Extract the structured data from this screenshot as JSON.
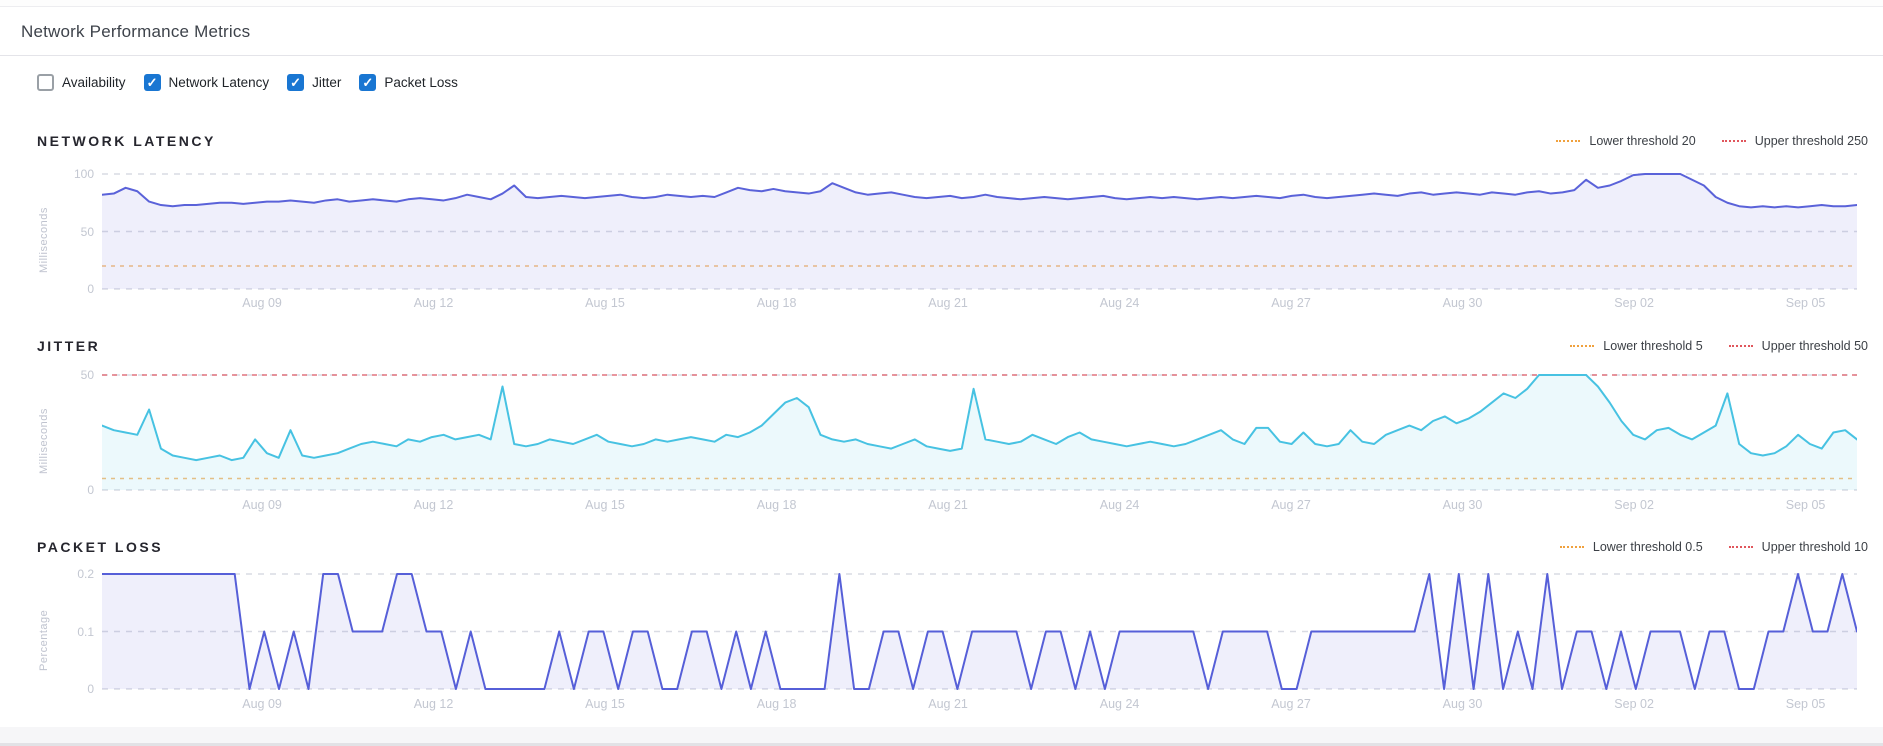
{
  "page": {
    "title": "Network Performance Metrics"
  },
  "filters": [
    {
      "label": "Availability",
      "checked": false
    },
    {
      "label": "Network Latency",
      "checked": true
    },
    {
      "label": "Jitter",
      "checked": true
    },
    {
      "label": "Packet Loss",
      "checked": true
    }
  ],
  "colors": {
    "checkbox_checked": "#1976d2",
    "lower_threshold": "#f0a13e",
    "upper_threshold": "#e0565c",
    "grid": "#d9dbe3",
    "tick_text": "#c3c7d1"
  },
  "x_axis": {
    "labels": [
      "Aug 09",
      "Aug 12",
      "Aug 15",
      "Aug 18",
      "Aug 21",
      "Aug 24",
      "Aug 27",
      "Aug 30",
      "Sep 02",
      "Sep 05"
    ],
    "offset_days": 2.8,
    "gap_days": 3,
    "total_days": 30.7
  },
  "chart_data": [
    {
      "type": "area",
      "title": "NETWORK LATENCY",
      "ylabel": "Milliseconds",
      "ymax": 100,
      "yticks": [
        100,
        50,
        0
      ],
      "lower_threshold": 20,
      "upper_threshold": 250,
      "legend": {
        "lower": "Lower threshold 20",
        "upper": "Upper threshold 250"
      },
      "line_color": "#5a62d9",
      "fill_color": "rgba(95,102,220,0.10)",
      "values": [
        82,
        83,
        88,
        85,
        76,
        73,
        72,
        73,
        73,
        74,
        75,
        75,
        74,
        75,
        76,
        76,
        77,
        76,
        75,
        77,
        78,
        76,
        77,
        78,
        77,
        76,
        78,
        79,
        78,
        77,
        79,
        82,
        80,
        78,
        83,
        90,
        80,
        79,
        80,
        81,
        80,
        79,
        80,
        81,
        82,
        80,
        79,
        80,
        82,
        81,
        80,
        81,
        80,
        84,
        88,
        86,
        85,
        87,
        85,
        84,
        83,
        85,
        92,
        88,
        84,
        82,
        83,
        84,
        82,
        80,
        79,
        80,
        81,
        79,
        80,
        82,
        80,
        79,
        78,
        79,
        80,
        79,
        78,
        79,
        80,
        81,
        79,
        78,
        79,
        80,
        79,
        80,
        79,
        78,
        79,
        80,
        79,
        80,
        81,
        80,
        79,
        81,
        82,
        80,
        79,
        80,
        81,
        82,
        83,
        82,
        81,
        83,
        84,
        82,
        83,
        84,
        83,
        82,
        84,
        83,
        82,
        84,
        85,
        83,
        84,
        86,
        95,
        88,
        90,
        94,
        99,
        100,
        102,
        101,
        100,
        95,
        90,
        80,
        75,
        72,
        71,
        72,
        71,
        72,
        71,
        72,
        73,
        72,
        72,
        73
      ]
    },
    {
      "type": "area",
      "title": "JITTER",
      "ylabel": "Milliseconds",
      "ymax": 50,
      "yticks": [
        50,
        0
      ],
      "lower_threshold": 5,
      "upper_threshold": 50,
      "legend": {
        "lower": "Lower threshold 5",
        "upper": "Upper threshold 50"
      },
      "line_color": "#47c2e2",
      "fill_color": "rgba(71,194,226,0.10)",
      "values": [
        28,
        26,
        25,
        24,
        35,
        18,
        15,
        14,
        13,
        14,
        15,
        13,
        14,
        22,
        16,
        14,
        26,
        15,
        14,
        15,
        16,
        18,
        20,
        21,
        20,
        19,
        22,
        21,
        23,
        24,
        22,
        23,
        24,
        22,
        45,
        20,
        19,
        20,
        22,
        21,
        20,
        22,
        24,
        21,
        20,
        19,
        20,
        22,
        21,
        22,
        23,
        22,
        21,
        24,
        23,
        25,
        28,
        33,
        38,
        40,
        36,
        24,
        22,
        21,
        22,
        20,
        19,
        18,
        20,
        22,
        19,
        18,
        17,
        18,
        44,
        22,
        21,
        20,
        21,
        24,
        22,
        20,
        23,
        25,
        22,
        21,
        20,
        19,
        20,
        21,
        20,
        19,
        20,
        22,
        24,
        26,
        22,
        20,
        27,
        27,
        21,
        20,
        25,
        20,
        19,
        20,
        26,
        21,
        20,
        24,
        26,
        28,
        26,
        30,
        32,
        29,
        31,
        34,
        38,
        42,
        40,
        44,
        52,
        55,
        56,
        54,
        52,
        45,
        38,
        30,
        24,
        22,
        26,
        27,
        24,
        22,
        25,
        28,
        42,
        20,
        16,
        15,
        16,
        19,
        24,
        20,
        18,
        25,
        26,
        22
      ]
    },
    {
      "type": "area",
      "title": "PACKET LOSS",
      "ylabel": "Percentage",
      "ymax": 0.2,
      "yticks": [
        0.2,
        0.1,
        0
      ],
      "lower_threshold": 0.5,
      "upper_threshold": 10,
      "legend": {
        "lower": "Lower threshold 0.5",
        "upper": "Upper threshold 10"
      },
      "line_color": "#565fd8",
      "fill_color": "rgba(95,102,220,0.10)",
      "values": [
        0.2,
        0.2,
        0.2,
        0.2,
        0.2,
        0.2,
        0.2,
        0.2,
        0.2,
        0.2,
        0,
        0.1,
        0,
        0.1,
        0,
        0.2,
        0.2,
        0.1,
        0.1,
        0.1,
        0.2,
        0.2,
        0.1,
        0.1,
        0,
        0.1,
        0,
        0,
        0,
        0,
        0,
        0.1,
        0,
        0.1,
        0.1,
        0,
        0.1,
        0.1,
        0,
        0,
        0.1,
        0.1,
        0,
        0.1,
        0,
        0.1,
        0,
        0,
        0,
        0,
        0.2,
        0,
        0,
        0.1,
        0.1,
        0,
        0.1,
        0.1,
        0,
        0.1,
        0.1,
        0.1,
        0.1,
        0,
        0.1,
        0.1,
        0,
        0.1,
        0,
        0.1,
        0.1,
        0.1,
        0.1,
        0.1,
        0.1,
        0,
        0.1,
        0.1,
        0.1,
        0.1,
        0,
        0,
        0.1,
        0.1,
        0.1,
        0.1,
        0.1,
        0.1,
        0.1,
        0.1,
        0.2,
        0,
        0.2,
        0,
        0.2,
        0,
        0.1,
        0,
        0.2,
        0,
        0.1,
        0.1,
        0,
        0.1,
        0,
        0.1,
        0.1,
        0.1,
        0,
        0.1,
        0.1,
        0,
        0,
        0.1,
        0.1,
        0.2,
        0.1,
        0.1,
        0.2,
        0.1
      ]
    }
  ],
  "layout_tops": {
    "latency": 133,
    "jitter": 338,
    "packet": 539
  }
}
